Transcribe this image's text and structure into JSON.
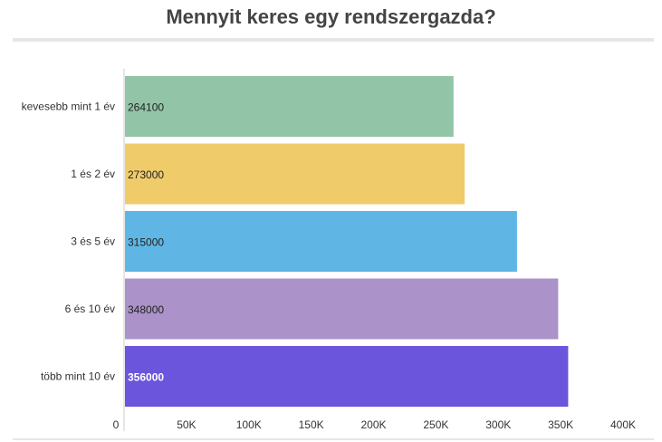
{
  "header": {
    "title": "Mennyit keres egy rendszergazda?"
  },
  "chart_data": {
    "type": "bar",
    "orientation": "horizontal",
    "title": "Mennyit keres egy rendszergazda?",
    "xlabel": "",
    "ylabel": "",
    "categories": [
      "kevesebb mint 1 év",
      "1 és 2 év",
      "3 és 5 év",
      "6 és 10 év",
      "több mint 10 év"
    ],
    "values": [
      264100,
      273000,
      315000,
      348000,
      356000
    ],
    "value_labels": [
      "264100",
      "273000",
      "315000",
      "348000",
      "356000"
    ],
    "colors": [
      "#92c5a8",
      "#efcb6a",
      "#5fb6e4",
      "#ab92c8",
      "#6b55dc"
    ],
    "label_colors": [
      "#222222",
      "#222222",
      "#222222",
      "#222222",
      "#ffffff"
    ],
    "xlim": [
      0,
      400000
    ],
    "ticks": [
      0,
      50000,
      100000,
      150000,
      200000,
      250000,
      300000,
      350000,
      400000
    ],
    "tick_labels": [
      "0",
      "50K",
      "100K",
      "150K",
      "200K",
      "250K",
      "300K",
      "350K",
      "400K"
    ],
    "grid": false,
    "legend": "none"
  }
}
